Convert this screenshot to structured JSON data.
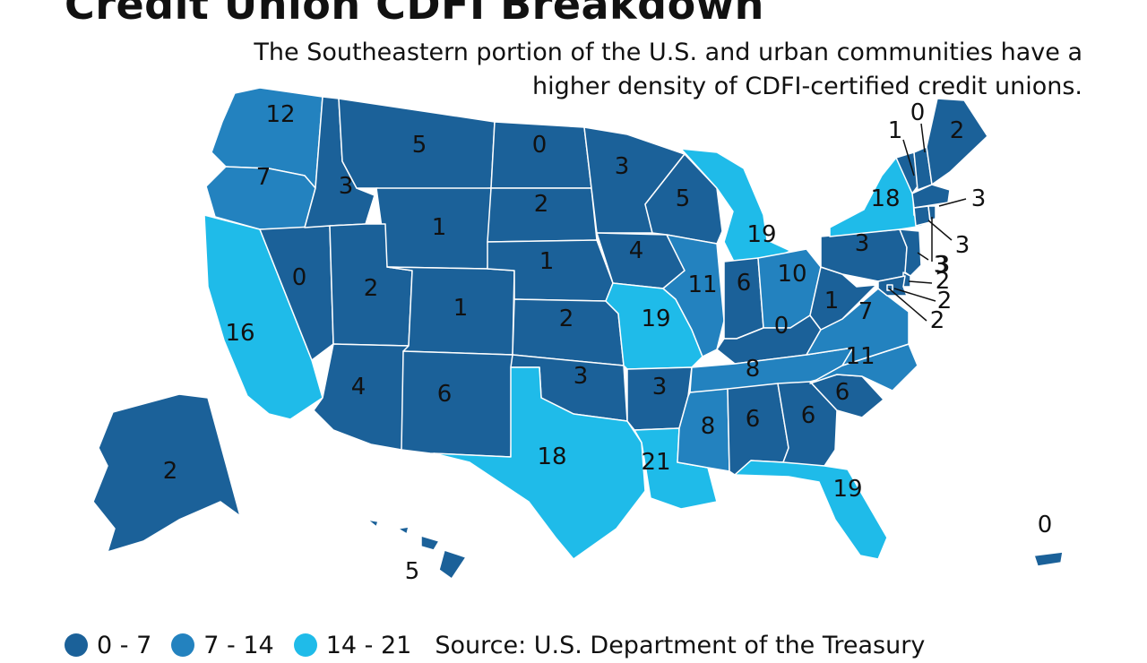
{
  "title": "Credit Union CDFI Breakdown",
  "subtitle": "The Southeastern portion of the U.S. and urban communities have a higher density of CDFI-certified credit unions.",
  "colors": {
    "low": "#1b6199",
    "mid": "#2382bf",
    "high": "#1fbbe9",
    "border": "#ffffff"
  },
  "legend": [
    {
      "label": "0 - 7",
      "color": "#1b6199"
    },
    {
      "label": "7 - 14",
      "color": "#2382bf"
    },
    {
      "label": "14 - 21",
      "color": "#1fbbe9"
    }
  ],
  "source": "Source: U.S. Department of the Treasury",
  "states": [
    {
      "abbr": "WA",
      "value": 12
    },
    {
      "abbr": "OR",
      "value": 7
    },
    {
      "abbr": "CA",
      "value": 16
    },
    {
      "abbr": "NV",
      "value": 0
    },
    {
      "abbr": "ID",
      "value": 3
    },
    {
      "abbr": "MT",
      "value": 5
    },
    {
      "abbr": "WY",
      "value": 1
    },
    {
      "abbr": "UT",
      "value": 2
    },
    {
      "abbr": "AZ",
      "value": 4
    },
    {
      "abbr": "CO",
      "value": 1
    },
    {
      "abbr": "NM",
      "value": 6
    },
    {
      "abbr": "ND",
      "value": 0
    },
    {
      "abbr": "SD",
      "value": 2
    },
    {
      "abbr": "NE",
      "value": 1
    },
    {
      "abbr": "KS",
      "value": 2
    },
    {
      "abbr": "OK",
      "value": 3
    },
    {
      "abbr": "TX",
      "value": 18
    },
    {
      "abbr": "MN",
      "value": 3
    },
    {
      "abbr": "IA",
      "value": 4
    },
    {
      "abbr": "MO",
      "value": 19
    },
    {
      "abbr": "AR",
      "value": 3
    },
    {
      "abbr": "LA",
      "value": 21
    },
    {
      "abbr": "WI",
      "value": 5
    },
    {
      "abbr": "IL",
      "value": 11
    },
    {
      "abbr": "MI",
      "value": 19
    },
    {
      "abbr": "IN",
      "value": 6
    },
    {
      "abbr": "OH",
      "value": 10
    },
    {
      "abbr": "KY",
      "value": 0
    },
    {
      "abbr": "TN",
      "value": 8
    },
    {
      "abbr": "MS",
      "value": 8
    },
    {
      "abbr": "AL",
      "value": 6
    },
    {
      "abbr": "GA",
      "value": 6
    },
    {
      "abbr": "FL",
      "value": 19
    },
    {
      "abbr": "SC",
      "value": 6
    },
    {
      "abbr": "NC",
      "value": 11
    },
    {
      "abbr": "VA",
      "value": 7
    },
    {
      "abbr": "WV",
      "value": 1
    },
    {
      "abbr": "PA",
      "value": 3
    },
    {
      "abbr": "NY",
      "value": 18
    },
    {
      "abbr": "VT",
      "value": 1
    },
    {
      "abbr": "NH",
      "value": 0
    },
    {
      "abbr": "ME",
      "value": 2
    },
    {
      "abbr": "MA",
      "value": 3
    },
    {
      "abbr": "CT",
      "value": 3
    },
    {
      "abbr": "RI",
      "value": 3
    },
    {
      "abbr": "NJ",
      "value": 3
    },
    {
      "abbr": "DE",
      "value": 2
    },
    {
      "abbr": "MD",
      "value": 2
    },
    {
      "abbr": "DC",
      "value": 2
    },
    {
      "abbr": "AK",
      "value": 2
    },
    {
      "abbr": "HI",
      "value": 5
    },
    {
      "abbr": "PR",
      "value": 0
    }
  ]
}
